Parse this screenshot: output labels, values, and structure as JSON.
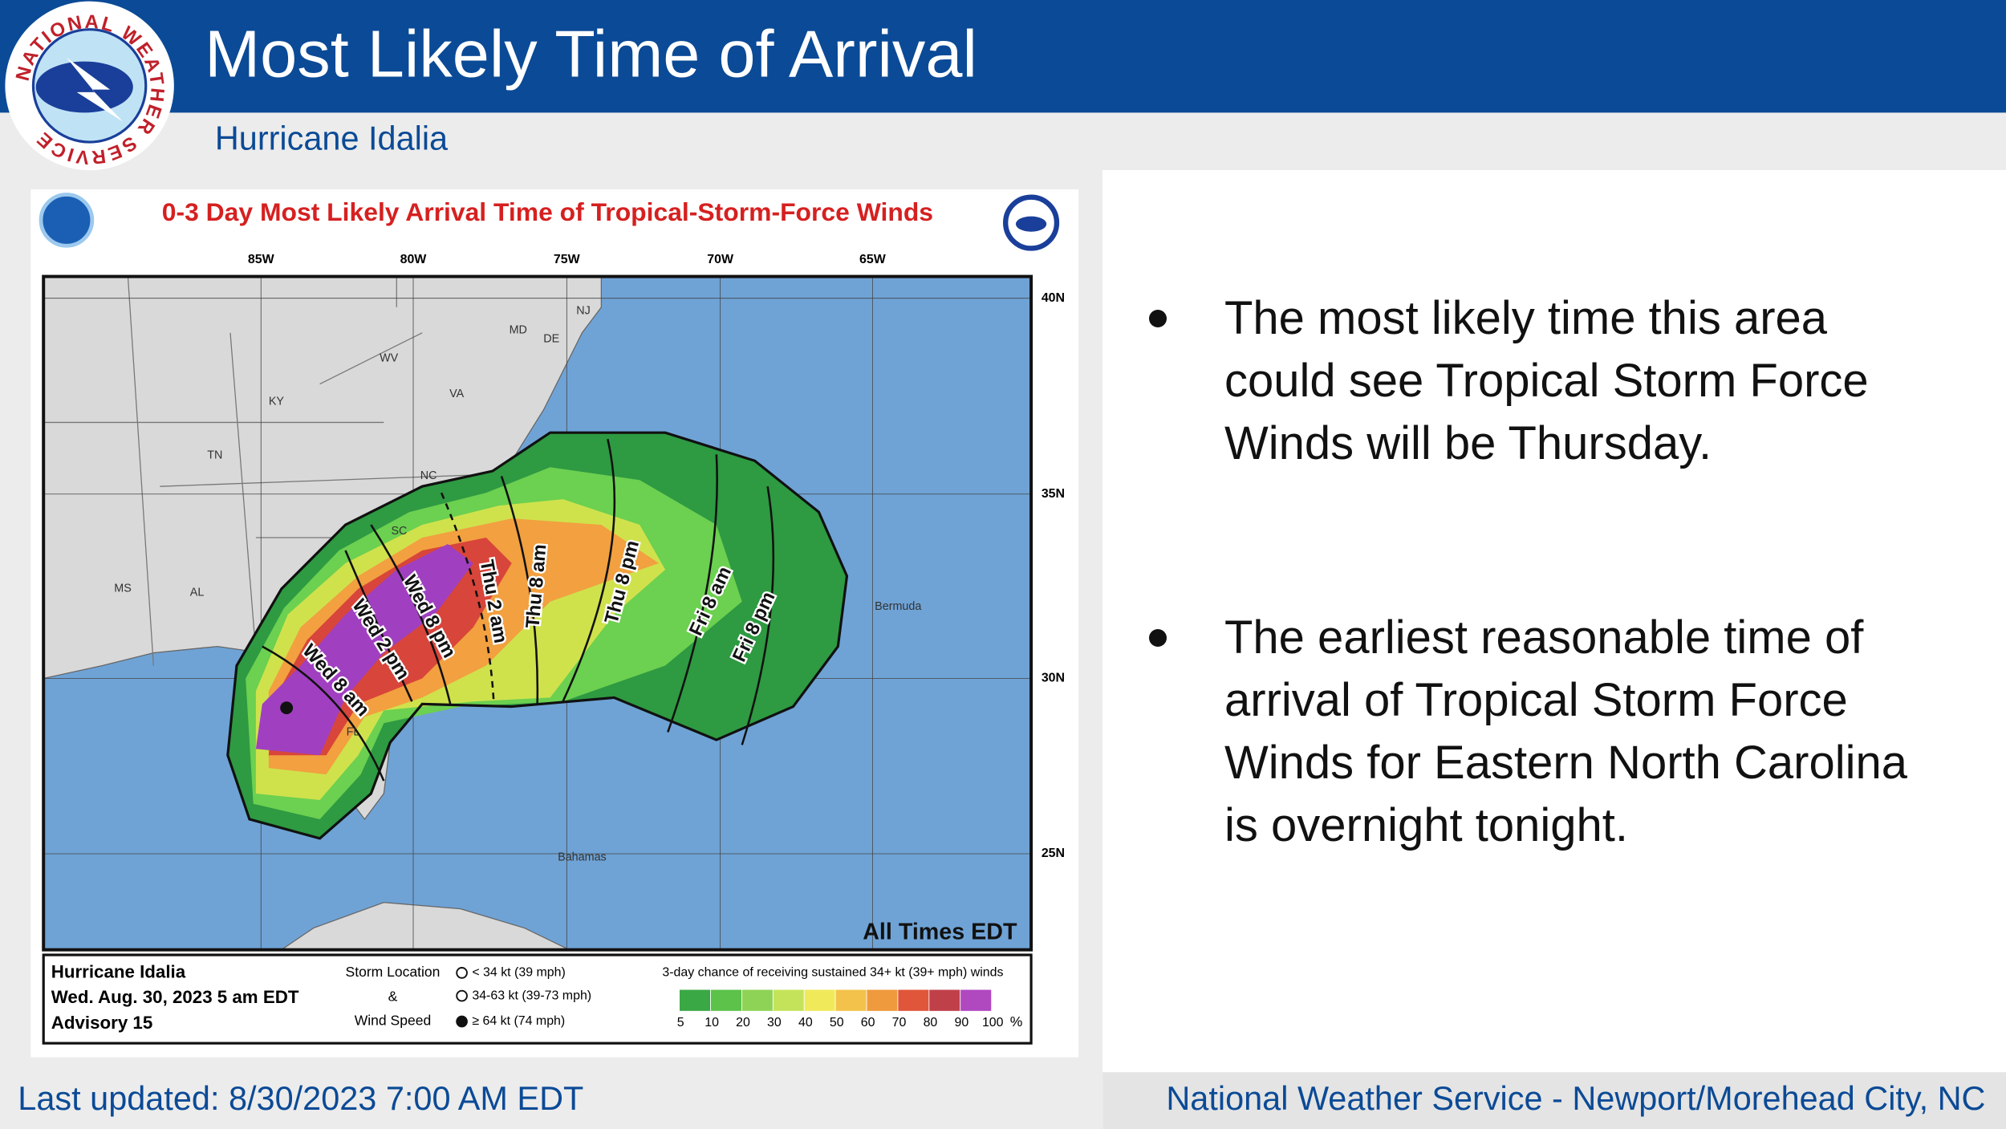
{
  "header": {
    "logo_text": "NATIONAL WEATHER SERVICE",
    "title": "Most Likely Time of Arrival",
    "subtitle": "Hurricane Idalia"
  },
  "map": {
    "title": "0-3 Day Most Likely Arrival Time of Tropical-Storm-Force Winds",
    "longitude_labels": [
      "85W",
      "80W",
      "75W",
      "70W",
      "65W"
    ],
    "latitude_labels": [
      "40N",
      "35N",
      "30N",
      "25N"
    ],
    "place_labels": [
      "NJ",
      "DE",
      "MD",
      "WV",
      "KY",
      "VA",
      "TN",
      "NC",
      "SC",
      "MS",
      "AL",
      "FL",
      "Bermuda",
      "Bahamas"
    ],
    "time_labels": [
      "Wed 8 am",
      "Wed 2 pm",
      "Wed 8 pm",
      "Thu 2 am",
      "Thu 8 am",
      "Thu 8 pm",
      "Fri 8 am",
      "Fri 8 pm"
    ],
    "note": "All Times EDT",
    "legend": {
      "storm": "Hurricane Idalia",
      "date": "Wed. Aug. 30, 2023  5 am EDT",
      "advisory": "Advisory 15",
      "symbol_titles": [
        "Storm Location",
        "&",
        "Wind Speed"
      ],
      "symbols": [
        "< 34 kt (39 mph)",
        "34-63 kt (39-73 mph)",
        "≥ 64 kt (74 mph)"
      ],
      "chance_title": "3-day chance of receiving sustained 34+ kt (39+ mph) winds",
      "scale": [
        5,
        10,
        20,
        30,
        40,
        50,
        60,
        70,
        80,
        90,
        100
      ],
      "scale_unit": "%",
      "scale_colors": [
        "#3aa844",
        "#5cc24a",
        "#8ed356",
        "#c4e35a",
        "#f0ea5a",
        "#f2c24a",
        "#f09a3e",
        "#e0563a",
        "#c0404a",
        "#b048c0"
      ]
    }
  },
  "bullets": [
    [
      "The most likely time this area",
      "could see Tropical Storm Force",
      "Winds will be Thursday."
    ],
    [
      "The earliest reasonable time of",
      "arrival of Tropical Storm Force",
      "Winds for Eastern North Carolina",
      "is overnight tonight."
    ]
  ],
  "footer": {
    "updated": "Last updated: 8/30/2023 7:00 AM EDT",
    "office": "National Weather Service - Newport/Morehead City, NC"
  }
}
